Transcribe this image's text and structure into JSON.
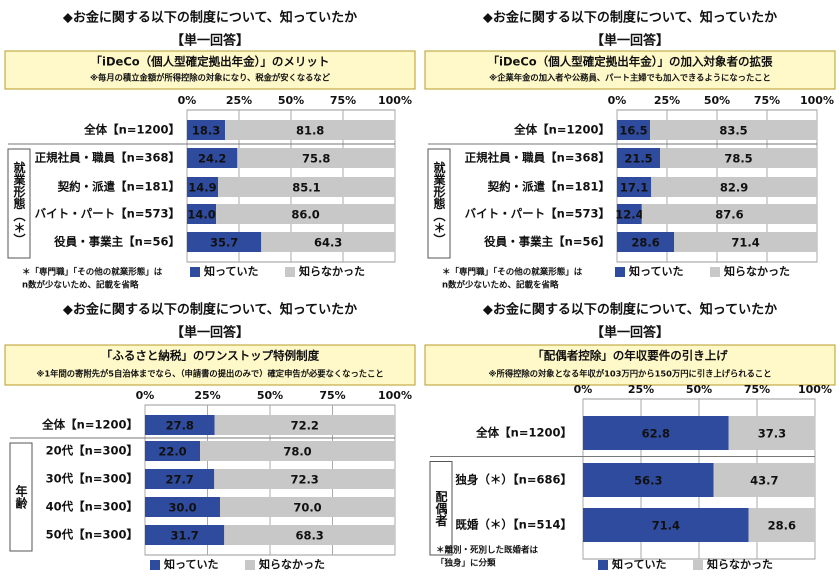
{
  "chart_data": [
    {
      "type": "bar",
      "title": "◆お金に関する以下の制度について、知っていたか",
      "subtitle": "【単一回答】",
      "box_title": "「iDeCo（個人型確定拠出年金）」のメリット",
      "note": "※毎月の積立金額が所得控除の対象になり、税金が安くなるなど",
      "categories": [
        "全体【n=1200】",
        "正規社員・職員【n=368】",
        "契約・派遣【n=181】",
        "バイト・パート【n=573】",
        "役員・事業主【n=56】"
      ],
      "group_label": "就業形態（＊）",
      "series": [
        {
          "name": "知っていた",
          "color": "#2f4b9e",
          "values": [
            18.3,
            24.2,
            14.9,
            14.0,
            35.7
          ],
          "value_labels": [
            "18.3",
            "24.2",
            "14.9",
            "14.0",
            "35.7"
          ]
        },
        {
          "name": "知らなかった",
          "color": "#c8c8c8",
          "values": [
            81.8,
            75.8,
            85.1,
            86.0,
            64.3
          ],
          "value_labels": [
            "81.8",
            "75.8",
            "85.1",
            "86.0",
            "64.3"
          ]
        }
      ],
      "xlim": [
        0,
        100
      ],
      "xticks": [
        {
          "value": 0,
          "label": "0%"
        },
        {
          "value": 25,
          "label": "25%"
        },
        {
          "value": 50,
          "label": "50%"
        },
        {
          "value": 75,
          "label": "75%"
        },
        {
          "value": 100,
          "label": "100%"
        }
      ],
      "grid": true,
      "footnote": [
        "＊「専門職」「その他の就業形態」は",
        "n数が少ないため、記載を省略"
      ]
    },
    {
      "type": "bar",
      "title": "◆お金に関する以下の制度について、知っていたか",
      "subtitle": "【単一回答】",
      "box_title": "「iDeCo（個人型確定拠出年金）」の加入対象者の拡張",
      "note": "※企業年金の加入者や公務員、パート主婦でも加入できるようになったこと",
      "categories": [
        "全体【n=1200】",
        "正規社員・職員【n=368】",
        "契約・派遣【n=181】",
        "バイト・パート【n=573】",
        "役員・事業主【n=56】"
      ],
      "group_label": "就業形態（＊）",
      "series": [
        {
          "name": "知っていた",
          "color": "#2f4b9e",
          "values": [
            16.5,
            21.5,
            17.1,
            12.4,
            28.6
          ],
          "value_labels": [
            "16.5",
            "21.5",
            "17.1",
            "12.4",
            "28.6"
          ]
        },
        {
          "name": "知らなかった",
          "color": "#c8c8c8",
          "values": [
            83.5,
            78.5,
            82.9,
            87.6,
            71.4
          ],
          "value_labels": [
            "83.5",
            "78.5",
            "82.9",
            "87.6",
            "71.4"
          ]
        }
      ],
      "xlim": [
        0,
        100
      ],
      "xticks": [
        {
          "value": 0,
          "label": "0%"
        },
        {
          "value": 25,
          "label": "25%"
        },
        {
          "value": 50,
          "label": "50%"
        },
        {
          "value": 75,
          "label": "75%"
        },
        {
          "value": 100,
          "label": "100%"
        }
      ],
      "grid": true,
      "footnote": [
        "＊「専門職」「その他の就業形態」は",
        "n数が少ないため、記載を省略"
      ]
    },
    {
      "type": "bar",
      "title": "◆お金に関する以下の制度について、知っていたか",
      "subtitle": "【単一回答】",
      "box_title": "「ふるさと納税」のワンストップ特例制度",
      "note": "※1年間の寄附先が5自治体までなら、（申請書の提出のみで）確定申告が必要なくなったこと",
      "categories": [
        "全体【n=1200】",
        "20代【n=300】",
        "30代【n=300】",
        "40代【n=300】",
        "50代【n=300】"
      ],
      "group_label": "年齢",
      "series": [
        {
          "name": "知っていた",
          "color": "#2f4b9e",
          "values": [
            27.8,
            22.0,
            27.7,
            30.0,
            31.7
          ],
          "value_labels": [
            "27.8",
            "22.0",
            "27.7",
            "30.0",
            "31.7"
          ]
        },
        {
          "name": "知らなかった",
          "color": "#c8c8c8",
          "values": [
            72.2,
            78.0,
            72.3,
            70.0,
            68.3
          ],
          "value_labels": [
            "72.2",
            "78.0",
            "72.3",
            "70.0",
            "68.3"
          ]
        }
      ],
      "xlim": [
        0,
        100
      ],
      "xticks": [
        {
          "value": 0,
          "label": "0%"
        },
        {
          "value": 25,
          "label": "25%"
        },
        {
          "value": 50,
          "label": "50%"
        },
        {
          "value": 75,
          "label": "75%"
        },
        {
          "value": 100,
          "label": "100%"
        }
      ],
      "grid": true
    },
    {
      "type": "bar",
      "title": "◆お金に関する以下の制度について、知っていたか",
      "subtitle": "【単一回答】",
      "box_title": "「配偶者控除」の年収要件の引き上げ",
      "note": "※所得控除の対象となる年収が103万円から150万円に引き上げられること",
      "categories": [
        "全体【n=1200】",
        "独身（＊）【n=686】",
        "既婚（＊）【n=514】"
      ],
      "group_label": "配偶者",
      "series": [
        {
          "name": "知っていた",
          "color": "#2f4b9e",
          "values": [
            62.8,
            56.3,
            71.4
          ],
          "value_labels": [
            "62.8",
            "56.3",
            "71.4"
          ]
        },
        {
          "name": "知らなかった",
          "color": "#c8c8c8",
          "values": [
            37.3,
            43.7,
            28.6
          ],
          "value_labels": [
            "37.3",
            "43.7",
            "28.6"
          ]
        }
      ],
      "xlim": [
        0,
        100
      ],
      "xticks": [
        {
          "value": 0,
          "label": "0%"
        },
        {
          "value": 25,
          "label": "25%"
        },
        {
          "value": 50,
          "label": "50%"
        },
        {
          "value": 75,
          "label": "75%"
        },
        {
          "value": 100,
          "label": "100%"
        }
      ],
      "grid": true,
      "footnote": [
        "＊離別・死別した既婚者は",
        "「独身」に分類"
      ]
    }
  ]
}
